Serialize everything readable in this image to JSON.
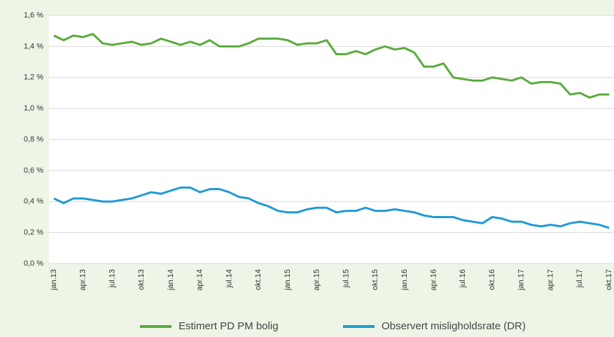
{
  "chart_data": {
    "type": "line",
    "categories": [
      "jan.13",
      null,
      null,
      "apr.13",
      null,
      null,
      "jul.13",
      null,
      null,
      "okt.13",
      null,
      null,
      "jan.14",
      null,
      null,
      "apr.14",
      null,
      null,
      "jul.14",
      null,
      null,
      "okt.14",
      null,
      null,
      "jan.15",
      null,
      null,
      "apr.15",
      null,
      null,
      "jul.15",
      null,
      null,
      "okt.15",
      null,
      null,
      "jan.16",
      null,
      null,
      "apr.16",
      null,
      null,
      "jul.16",
      null,
      null,
      "okt.16",
      null,
      null,
      "jan.17",
      null,
      null,
      "apr.17",
      null,
      null,
      "jul.17",
      null,
      null,
      "okt.17"
    ],
    "series": [
      {
        "name": "Estimert PD PM bolig",
        "color": "#5aab3c",
        "values": [
          1.47,
          1.44,
          1.47,
          1.46,
          1.48,
          1.42,
          1.41,
          1.42,
          1.43,
          1.41,
          1.42,
          1.45,
          1.43,
          1.41,
          1.43,
          1.41,
          1.44,
          1.4,
          1.4,
          1.4,
          1.42,
          1.45,
          1.45,
          1.45,
          1.44,
          1.41,
          1.42,
          1.42,
          1.44,
          1.35,
          1.35,
          1.37,
          1.35,
          1.38,
          1.4,
          1.38,
          1.39,
          1.36,
          1.27,
          1.27,
          1.29,
          1.2,
          1.19,
          1.18,
          1.18,
          1.2,
          1.19,
          1.18,
          1.2,
          1.16,
          1.17,
          1.17,
          1.16,
          1.09,
          1.1,
          1.07,
          1.09,
          1.09
        ]
      },
      {
        "name": "Observert misligholdsrate (DR)",
        "color": "#1f9ad6",
        "values": [
          0.42,
          0.39,
          0.42,
          0.42,
          0.41,
          0.4,
          0.4,
          0.41,
          0.42,
          0.44,
          0.46,
          0.45,
          0.47,
          0.49,
          0.49,
          0.46,
          0.48,
          0.48,
          0.46,
          0.43,
          0.42,
          0.39,
          0.37,
          0.34,
          0.33,
          0.33,
          0.35,
          0.36,
          0.36,
          0.33,
          0.34,
          0.34,
          0.36,
          0.34,
          0.34,
          0.35,
          0.34,
          0.33,
          0.31,
          0.3,
          0.3,
          0.3,
          0.28,
          0.27,
          0.26,
          0.3,
          0.29,
          0.27,
          0.27,
          0.25,
          0.24,
          0.25,
          0.24,
          0.26,
          0.27,
          0.26,
          0.25,
          0.23
        ]
      }
    ],
    "ylim": [
      0,
      1.6
    ],
    "yticks": [
      {
        "value": 0,
        "label": "0,0 %"
      },
      {
        "value": 0.2,
        "label": "0,2 %"
      },
      {
        "value": 0.4,
        "label": "0,4 %"
      },
      {
        "value": 0.6,
        "label": "0,6 %"
      },
      {
        "value": 0.8,
        "label": "0,8 %"
      },
      {
        "value": 1.0,
        "label": "1,0 %"
      },
      {
        "value": 1.2,
        "label": "1,2 %"
      },
      {
        "value": 1.4,
        "label": "1,4 %"
      },
      {
        "value": 1.6,
        "label": "1,6 %"
      }
    ],
    "grid": true
  }
}
